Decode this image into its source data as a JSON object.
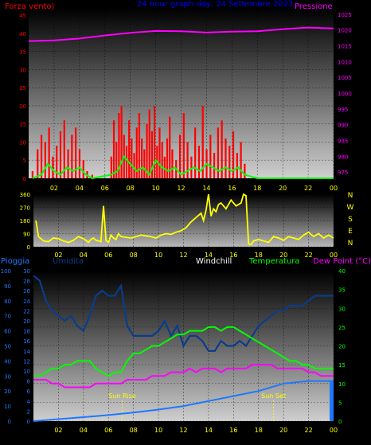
{
  "panel_top": {
    "left_title": "Forza vento)",
    "center_title": "24 hour graph day, 24 Settembre 2023",
    "right_title": "Pressione"
  },
  "panel_bottom": {
    "label_rain": "Pioggia",
    "label_humidity": "Umidita",
    "label_windchill": "Windchill",
    "label_temperature": "Temperatura",
    "label_dewpoint": "Dew Point (°C)",
    "sunrise_label": "Sun Rise",
    "sunset_label": "Sun Set"
  },
  "colors": {
    "wind": "#ff0000",
    "gust": "#00ff00",
    "pressure": "#ff00ff",
    "direction": "#ffff00",
    "rain": "#1e78ff",
    "humidity": "#0a3c8c",
    "temperature": "#00ff00",
    "dewpoint": "#ff00ff",
    "axis_left": "#ff0000",
    "axis_right": "#ff00ff",
    "axis_x": "#ffff00",
    "title": "#0000ff",
    "axis_temp": "#00ff00",
    "axis_rain": "#1e78ff"
  },
  "chart_data": [
    {
      "type": "line",
      "name": "wind-pressure",
      "x_ticks": [
        "02",
        "04",
        "06",
        "08",
        "10",
        "12",
        "14",
        "16",
        "18",
        "20",
        "22",
        "00"
      ],
      "x_range": [
        0,
        24
      ],
      "y_left_ticks": [
        "0",
        "5",
        "10",
        "15",
        "20",
        "25",
        "30",
        "35",
        "40",
        "45"
      ],
      "y_left_range": [
        0,
        47
      ],
      "y_right_ticks": [
        "975",
        "980",
        "985",
        "990",
        "995",
        "1000",
        "1005",
        "1010",
        "1015",
        "1020",
        "1025"
      ],
      "y_right_range": [
        973,
        1027
      ],
      "series": [
        {
          "key": "wind",
          "axis": "left",
          "style": "bars",
          "x": [
            0.3,
            0.7,
            1.0,
            1.3,
            1.6,
            1.9,
            2.2,
            2.5,
            2.8,
            3.1,
            3.4,
            3.7,
            4.0,
            4.3,
            4.6,
            5.0,
            6.5,
            6.7,
            6.9,
            7.1,
            7.3,
            7.5,
            7.7,
            7.9,
            8.1,
            8.3,
            8.5,
            8.7,
            8.9,
            9.1,
            9.3,
            9.5,
            9.7,
            9.9,
            10.1,
            10.3,
            10.5,
            10.7,
            10.9,
            11.1,
            11.3,
            11.6,
            11.9,
            12.2,
            12.5,
            12.8,
            13.1,
            13.4,
            13.7,
            14.0,
            14.3,
            14.6,
            14.9,
            15.2,
            15.5,
            15.8,
            16.1,
            16.4,
            16.7,
            17.0
          ],
          "values": [
            2,
            8,
            12,
            10,
            14,
            6,
            9,
            13,
            16,
            8,
            12,
            14,
            8,
            5,
            2,
            1,
            6,
            16,
            10,
            18,
            20,
            12,
            9,
            16,
            11,
            7,
            14,
            18,
            11,
            8,
            15,
            19,
            13,
            20,
            9,
            14,
            10,
            6,
            11,
            17,
            8,
            5,
            12,
            18,
            10,
            6,
            14,
            9,
            20,
            8,
            12,
            7,
            14,
            16,
            11,
            9,
            13,
            7,
            10,
            4
          ]
        },
        {
          "key": "gust",
          "axis": "left",
          "style": "line",
          "x": [
            0.3,
            1.0,
            1.5,
            2.0,
            2.5,
            3.0,
            3.5,
            4.0,
            4.5,
            5.0,
            6.5,
            7.0,
            7.5,
            8.0,
            8.5,
            9.0,
            9.5,
            10.0,
            10.5,
            11.0,
            11.5,
            12.0,
            12.5,
            13.0,
            13.5,
            14.0,
            14.5,
            15.0,
            15.5,
            16.0,
            16.5,
            17.0,
            18.0,
            20.0,
            22.0,
            24.0
          ],
          "values": [
            0,
            1,
            4,
            2,
            1,
            3,
            2,
            3,
            1,
            0,
            1,
            2,
            6,
            4,
            2,
            3,
            1,
            5,
            3,
            2,
            3,
            1,
            2,
            3,
            2,
            4,
            3,
            2,
            3,
            2,
            3,
            1,
            0,
            0,
            0,
            0
          ]
        },
        {
          "key": "pressure",
          "axis": "right",
          "style": "line",
          "x": [
            0,
            2,
            4,
            6,
            8,
            10,
            12,
            14,
            16,
            18,
            20,
            22,
            24
          ],
          "values": [
            1016.5,
            1016.7,
            1017.3,
            1018.3,
            1019.1,
            1019.7,
            1019.6,
            1019.2,
            1019.5,
            1019.6,
            1020.3,
            1020.8,
            1020.5
          ]
        }
      ]
    },
    {
      "type": "line",
      "name": "wind-direction",
      "x_ticks": [
        "02",
        "04",
        "06",
        "08",
        "10",
        "12",
        "14",
        "16",
        "18",
        "20",
        "22",
        "00"
      ],
      "x_range": [
        0,
        24
      ],
      "y_left_ticks": [
        "0",
        "90",
        "180",
        "270",
        "360"
      ],
      "y_left_range": [
        0,
        360
      ],
      "y_right_ticks": [
        "N",
        "E",
        "S",
        "W",
        "N"
      ],
      "series": [
        {
          "key": "direction",
          "axis": "left",
          "style": "line",
          "x": [
            0.2,
            0.4,
            0.8,
            1.2,
            1.6,
            2.0,
            2.4,
            2.8,
            3.2,
            3.6,
            4.0,
            4.2,
            4.4,
            4.6,
            4.8,
            5.0,
            5.2,
            5.4,
            5.6,
            5.8,
            6.0,
            6.2,
            6.4,
            6.6,
            6.8,
            7.0,
            7.4,
            7.8,
            8.2,
            8.6,
            9.0,
            9.4,
            9.8,
            10.2,
            10.6,
            11.0,
            11.4,
            11.8,
            12.2,
            12.6,
            13.0,
            13.4,
            13.6,
            13.8,
            14.0,
            14.2,
            14.4,
            14.6,
            14.8,
            15.0,
            15.4,
            15.8,
            16.2,
            16.6,
            16.8,
            17.0,
            17.2,
            17.4,
            17.6,
            18.0,
            18.4,
            18.8,
            19.2,
            19.6,
            20.0,
            20.4,
            20.8,
            21.2,
            21.6,
            22.0,
            22.4,
            22.8,
            23.2,
            23.6,
            24.0
          ],
          "values": [
            180,
            70,
            40,
            35,
            60,
            55,
            40,
            30,
            45,
            70,
            55,
            45,
            30,
            50,
            60,
            45,
            40,
            35,
            280,
            45,
            30,
            80,
            60,
            50,
            90,
            70,
            65,
            60,
            70,
            80,
            75,
            70,
            60,
            80,
            90,
            85,
            100,
            110,
            130,
            170,
            200,
            230,
            180,
            250,
            360,
            210,
            260,
            240,
            290,
            300,
            260,
            320,
            280,
            300,
            360,
            350,
            20,
            15,
            40,
            50,
            40,
            30,
            70,
            60,
            45,
            70,
            60,
            50,
            80,
            100,
            70,
            90,
            60,
            80,
            60
          ]
        }
      ]
    },
    {
      "type": "line",
      "name": "humidity-temperature",
      "x_ticks": [
        "02",
        "04",
        "06",
        "08",
        "10",
        "12",
        "14",
        "16",
        "18",
        "20",
        "22",
        "00"
      ],
      "x_range": [
        0,
        24
      ],
      "y_rain_ticks": [
        "0",
        "10",
        "20",
        "30",
        "40",
        "50",
        "60",
        "70",
        "80",
        "90",
        "100"
      ],
      "y_hum_ticks": [
        "0",
        "2",
        "4",
        "6",
        "8",
        "10",
        "12",
        "14",
        "16",
        "18",
        "20",
        "22",
        "24",
        "26",
        "28",
        "30"
      ],
      "y_hum_range": [
        0,
        30
      ],
      "y_temp_ticks": [
        "0",
        "5",
        "10",
        "15",
        "20",
        "25",
        "30",
        "35",
        "40"
      ],
      "y_temp_range": [
        0,
        40
      ],
      "series": [
        {
          "key": "humidity",
          "axis": "hum",
          "style": "line",
          "x": [
            0,
            0.5,
            1.0,
            1.5,
            2.0,
            2.5,
            3.0,
            3.5,
            4.0,
            4.5,
            5.0,
            5.5,
            6.0,
            6.5,
            7.0,
            7.5,
            8.0,
            8.5,
            9.0,
            9.5,
            10.0,
            10.5,
            11.0,
            11.5,
            12.0,
            12.5,
            13.0,
            13.5,
            14.0,
            14.5,
            15.0,
            15.5,
            16.0,
            16.5,
            17.0,
            17.5,
            18.0,
            18.5,
            19.0,
            19.5,
            20.0,
            20.5,
            21.0,
            21.5,
            22.0,
            22.5,
            23.0,
            23.5,
            24.0
          ],
          "values": [
            29,
            28,
            24,
            22,
            21,
            20,
            21,
            19,
            18,
            21,
            25,
            26,
            25,
            25,
            27,
            19,
            17,
            17,
            17,
            17,
            18,
            20,
            17,
            19,
            15,
            17,
            17,
            16,
            14,
            14,
            16,
            15,
            15,
            16,
            15,
            17,
            19,
            20,
            21,
            22,
            22,
            23,
            23,
            23,
            24,
            25,
            25,
            25,
            25
          ]
        },
        {
          "key": "temperature",
          "axis": "temp",
          "style": "line",
          "x": [
            0,
            0.5,
            1.0,
            1.5,
            2.0,
            2.5,
            3.0,
            3.5,
            4.0,
            4.5,
            5.0,
            5.5,
            6.0,
            6.5,
            7.0,
            7.5,
            8.0,
            8.5,
            9.0,
            9.5,
            10.0,
            10.5,
            11.0,
            11.5,
            12.0,
            12.5,
            13.0,
            13.5,
            14.0,
            14.5,
            15.0,
            15.5,
            16.0,
            16.5,
            17.0,
            17.5,
            18.0,
            18.5,
            19.0,
            19.5,
            20.0,
            20.5,
            21.0,
            21.5,
            22.0,
            22.5,
            23.0,
            23.5,
            24.0
          ],
          "values": [
            12,
            12,
            13,
            14,
            14,
            15,
            15,
            16,
            16,
            16,
            14,
            13,
            12,
            13,
            13,
            16,
            18,
            18,
            19,
            20,
            20,
            21,
            22,
            23,
            23,
            24,
            24,
            24,
            25,
            25,
            24,
            25,
            25,
            24,
            23,
            22,
            21,
            20,
            19,
            18,
            17,
            16,
            16,
            15,
            15,
            14,
            14,
            14,
            14
          ]
        },
        {
          "key": "dewpoint",
          "axis": "temp",
          "style": "line",
          "x": [
            0,
            0.5,
            1.0,
            1.5,
            2.0,
            2.5,
            3.0,
            3.5,
            4.0,
            4.5,
            5.0,
            5.5,
            6.0,
            6.5,
            7.0,
            7.5,
            8.0,
            8.5,
            9.0,
            9.5,
            10.0,
            10.5,
            11.0,
            11.5,
            12.0,
            12.5,
            13.0,
            13.5,
            14.0,
            14.5,
            15.0,
            15.5,
            16.0,
            16.5,
            17.0,
            17.5,
            18.0,
            18.5,
            19.0,
            19.5,
            20.0,
            20.5,
            21.0,
            21.5,
            22.0,
            22.5,
            23.0,
            23.5,
            24.0
          ],
          "values": [
            11,
            11,
            11,
            10,
            10,
            9,
            9,
            9,
            9,
            9,
            10,
            10,
            10,
            10,
            10,
            11,
            11,
            11,
            11,
            12,
            12,
            12,
            13,
            13,
            13,
            14,
            13,
            14,
            14,
            14,
            13,
            14,
            14,
            14,
            14,
            15,
            15,
            15,
            15,
            14,
            14,
            14,
            14,
            14,
            13,
            13,
            12,
            12,
            12
          ]
        },
        {
          "key": "rain",
          "axis": "hum",
          "style": "line",
          "x": [
            0,
            2,
            4,
            6,
            8,
            10,
            12,
            14,
            16,
            18,
            20,
            22,
            24
          ],
          "values": [
            0,
            0.4,
            0.8,
            1.2,
            1.7,
            2.3,
            3,
            4,
            5,
            6,
            7.5,
            8,
            8
          ]
        }
      ],
      "annotations": [
        {
          "key": "sunrise",
          "x": 7.1
        },
        {
          "key": "sunset",
          "x": 19.2
        }
      ]
    }
  ]
}
